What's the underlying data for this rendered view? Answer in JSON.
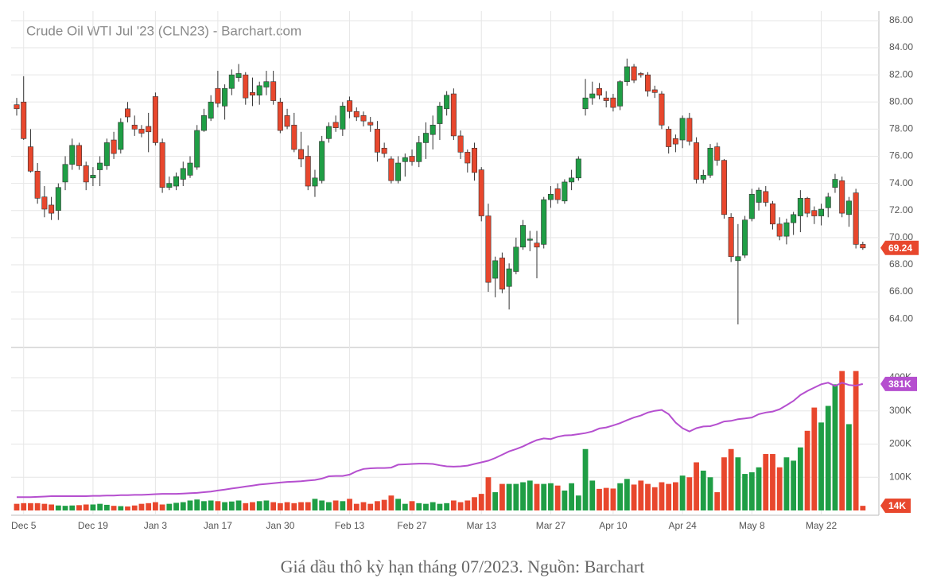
{
  "chart_data": {
    "type": "candlestick",
    "title": "Crude Oil WTI Jul '23 (CLN23) - Barchart.com",
    "categories": [
      null,
      "Dec 5",
      null,
      null,
      null,
      null,
      null,
      null,
      null,
      null,
      null,
      "Dec 19",
      null,
      null,
      null,
      null,
      null,
      null,
      null,
      null,
      "Jan 3",
      null,
      null,
      null,
      null,
      null,
      null,
      null,
      null,
      "Jan 17",
      null,
      null,
      null,
      null,
      null,
      null,
      null,
      null,
      "Jan 30",
      null,
      null,
      null,
      null,
      null,
      null,
      null,
      null,
      null,
      "Feb 13",
      null,
      null,
      null,
      null,
      null,
      null,
      null,
      null,
      "Feb 27",
      null,
      null,
      null,
      null,
      null,
      null,
      null,
      null,
      null,
      "Mar 13",
      null,
      null,
      null,
      null,
      null,
      null,
      null,
      null,
      null,
      "Mar 27",
      null,
      null,
      null,
      null,
      null,
      null,
      null,
      null,
      "Apr 10",
      null,
      null,
      null,
      null,
      null,
      null,
      null,
      null,
      null,
      "Apr 24",
      null,
      null,
      null,
      null,
      null,
      null,
      null,
      null,
      null,
      "May 8",
      null,
      null,
      null,
      null,
      null,
      null,
      null,
      null,
      null,
      "May 22",
      null,
      null,
      null,
      null,
      null,
      null
    ],
    "candles": [
      [
        79.8,
        80.3,
        79.0,
        79.5
      ],
      [
        80.0,
        81.9,
        77.2,
        77.3
      ],
      [
        76.7,
        78.0,
        74.8,
        74.9
      ],
      [
        74.9,
        75.5,
        72.5,
        72.9
      ],
      [
        73.0,
        73.8,
        71.5,
        72.1
      ],
      [
        72.4,
        73.0,
        71.3,
        71.8
      ],
      [
        72.0,
        74.0,
        71.3,
        73.7
      ],
      [
        74.1,
        76.0,
        73.5,
        75.4
      ],
      [
        75.4,
        77.3,
        75.0,
        76.8
      ],
      [
        76.8,
        77.0,
        75.0,
        75.3
      ],
      [
        75.3,
        75.6,
        73.5,
        74.1
      ],
      [
        74.4,
        75.2,
        73.8,
        74.6
      ],
      [
        75.0,
        76.0,
        73.8,
        75.5
      ],
      [
        75.3,
        77.3,
        75.0,
        77.0
      ],
      [
        77.2,
        77.8,
        75.8,
        76.2
      ],
      [
        76.5,
        78.8,
        76.2,
        78.5
      ],
      [
        79.5,
        80.0,
        78.5,
        78.9
      ],
      [
        78.3,
        79.0,
        77.5,
        78.0
      ],
      [
        78.0,
        78.3,
        77.4,
        77.7
      ],
      [
        78.2,
        79.2,
        76.3,
        77.8
      ],
      [
        80.4,
        80.7,
        76.8,
        77.0
      ],
      [
        77.0,
        77.3,
        73.3,
        73.7
      ],
      [
        73.7,
        74.5,
        73.5,
        74.0
      ],
      [
        73.8,
        74.8,
        73.5,
        74.5
      ],
      [
        74.3,
        75.6,
        73.8,
        75.1
      ],
      [
        74.6,
        76.0,
        74.4,
        75.5
      ],
      [
        75.2,
        78.3,
        75.0,
        77.9
      ],
      [
        77.9,
        79.5,
        77.8,
        79.0
      ],
      [
        78.8,
        80.5,
        78.6,
        80.0
      ],
      [
        81.0,
        82.3,
        79.6,
        79.9
      ],
      [
        79.7,
        81.3,
        78.7,
        81.0
      ],
      [
        81.0,
        82.4,
        80.5,
        82.0
      ],
      [
        81.8,
        82.8,
        81.5,
        82.1
      ],
      [
        82.0,
        82.2,
        79.8,
        80.3
      ],
      [
        80.7,
        81.8,
        79.7,
        80.5
      ],
      [
        80.5,
        81.5,
        79.8,
        81.2
      ],
      [
        81.1,
        82.3,
        80.5,
        81.5
      ],
      [
        81.5,
        82.3,
        79.8,
        80.1
      ],
      [
        80.0,
        80.3,
        77.7,
        77.9
      ],
      [
        79.0,
        79.5,
        78.0,
        78.2
      ],
      [
        78.3,
        79.2,
        76.3,
        76.5
      ],
      [
        76.5,
        77.8,
        75.2,
        75.8
      ],
      [
        76.0,
        76.8,
        73.5,
        73.8
      ],
      [
        73.8,
        75.0,
        73.0,
        74.4
      ],
      [
        74.2,
        77.5,
        74.0,
        77.1
      ],
      [
        77.3,
        78.5,
        77.0,
        78.2
      ],
      [
        78.5,
        79.0,
        77.8,
        78.1
      ],
      [
        78.0,
        80.0,
        77.5,
        79.7
      ],
      [
        80.1,
        80.4,
        78.8,
        79.3
      ],
      [
        79.3,
        79.6,
        78.6,
        78.9
      ],
      [
        79.0,
        79.3,
        78.2,
        78.6
      ],
      [
        78.5,
        78.9,
        77.8,
        78.3
      ],
      [
        78.0,
        78.6,
        75.6,
        76.3
      ],
      [
        76.6,
        77.0,
        75.9,
        76.2
      ],
      [
        75.8,
        76.0,
        74.0,
        74.2
      ],
      [
        74.2,
        76.0,
        74.0,
        75.5
      ],
      [
        75.6,
        76.2,
        74.5,
        75.9
      ],
      [
        76.0,
        76.5,
        75.3,
        75.6
      ],
      [
        75.6,
        77.5,
        75.2,
        77.0
      ],
      [
        77.0,
        78.5,
        75.8,
        77.7
      ],
      [
        77.6,
        79.0,
        76.5,
        78.3
      ],
      [
        78.4,
        80.0,
        77.2,
        79.7
      ],
      [
        79.5,
        80.8,
        79.0,
        80.5
      ],
      [
        80.6,
        81.0,
        77.2,
        77.5
      ],
      [
        77.5,
        77.9,
        75.8,
        76.3
      ],
      [
        76.3,
        76.5,
        74.8,
        75.5
      ],
      [
        76.6,
        77.0,
        74.2,
        74.8
      ],
      [
        75.0,
        75.2,
        71.2,
        71.6
      ],
      [
        71.6,
        72.5,
        66.0,
        66.7
      ],
      [
        67.0,
        68.6,
        65.6,
        68.3
      ],
      [
        68.5,
        68.9,
        65.9,
        66.2
      ],
      [
        66.4,
        68.1,
        64.7,
        67.7
      ],
      [
        67.5,
        70.0,
        67.3,
        69.3
      ],
      [
        69.3,
        71.3,
        69.1,
        70.9
      ],
      [
        69.8,
        70.5,
        69.0,
        69.9
      ],
      [
        69.6,
        70.5,
        67.0,
        69.3
      ],
      [
        69.5,
        73.0,
        69.2,
        72.8
      ],
      [
        72.8,
        73.8,
        72.2,
        73.2
      ],
      [
        73.6,
        74.0,
        72.5,
        72.8
      ],
      [
        72.7,
        74.3,
        72.5,
        74.1
      ],
      [
        74.1,
        75.0,
        73.5,
        74.4
      ],
      [
        74.4,
        76.0,
        74.2,
        75.8
      ],
      [
        79.5,
        81.7,
        79.0,
        80.3
      ],
      [
        80.3,
        81.5,
        79.8,
        80.6
      ],
      [
        81.0,
        81.4,
        80.2,
        80.5
      ],
      [
        80.3,
        80.8,
        79.6,
        80.1
      ],
      [
        80.3,
        80.6,
        79.3,
        79.6
      ],
      [
        79.7,
        81.6,
        79.4,
        81.5
      ],
      [
        81.5,
        83.2,
        81.2,
        82.6
      ],
      [
        82.6,
        82.8,
        81.4,
        81.6
      ],
      [
        82.1,
        82.2,
        81.8,
        82.0
      ],
      [
        82.0,
        82.2,
        80.4,
        80.8
      ],
      [
        80.9,
        81.2,
        80.3,
        80.7
      ],
      [
        80.6,
        80.8,
        78.0,
        78.3
      ],
      [
        78.0,
        78.2,
        76.2,
        76.7
      ],
      [
        77.3,
        77.6,
        76.3,
        76.9
      ],
      [
        77.2,
        79.0,
        76.6,
        78.8
      ],
      [
        78.8,
        79.2,
        76.8,
        77.1
      ],
      [
        77.0,
        77.4,
        74.0,
        74.3
      ],
      [
        74.3,
        75.0,
        74.0,
        74.6
      ],
      [
        74.6,
        76.9,
        74.4,
        76.6
      ],
      [
        76.7,
        77.0,
        75.3,
        75.7
      ],
      [
        75.7,
        75.8,
        71.4,
        71.7
      ],
      [
        71.5,
        71.8,
        68.2,
        68.6
      ],
      [
        68.3,
        71.0,
        63.6,
        68.6
      ],
      [
        68.7,
        71.6,
        68.5,
        71.3
      ],
      [
        71.4,
        73.6,
        71.2,
        73.2
      ],
      [
        72.6,
        73.7,
        72.0,
        73.5
      ],
      [
        73.4,
        73.8,
        72.3,
        72.6
      ],
      [
        72.5,
        72.7,
        70.6,
        71.0
      ],
      [
        71.0,
        71.5,
        69.8,
        70.1
      ],
      [
        70.1,
        71.4,
        69.5,
        71.1
      ],
      [
        71.1,
        71.9,
        70.2,
        71.7
      ],
      [
        71.6,
        73.5,
        70.4,
        72.9
      ],
      [
        72.9,
        73.0,
        71.5,
        71.8
      ],
      [
        72.0,
        72.3,
        71.0,
        71.6
      ],
      [
        71.6,
        72.5,
        70.9,
        72.1
      ],
      [
        72.2,
        73.3,
        71.5,
        73.0
      ],
      [
        73.7,
        74.7,
        73.3,
        74.3
      ],
      [
        74.2,
        74.5,
        71.5,
        71.8
      ],
      [
        71.7,
        73.0,
        70.8,
        72.7
      ],
      [
        73.3,
        73.6,
        69.2,
        69.5
      ],
      [
        69.5,
        69.7,
        69.1,
        69.24
      ]
    ],
    "up_color": "#1f9e45",
    "down_color": "#e8472d",
    "ylim": [
      61.9,
      86.7
    ],
    "yticks": [
      {
        "value": 64,
        "label": "64.00"
      },
      {
        "value": 66,
        "label": "66.00"
      },
      {
        "value": 68,
        "label": "68.00"
      },
      {
        "value": 70,
        "label": "70.00"
      },
      {
        "value": 72,
        "label": "72.00"
      },
      {
        "value": 74,
        "label": "74.00"
      },
      {
        "value": 76,
        "label": "76.00"
      },
      {
        "value": 78,
        "label": "78.00"
      },
      {
        "value": 80,
        "label": "80.00"
      },
      {
        "value": 82,
        "label": "82.00"
      },
      {
        "value": 84,
        "label": "84.00"
      },
      {
        "value": 86,
        "label": "86.00"
      }
    ],
    "price_label": 69.24,
    "grid": true,
    "volume": {
      "values": [
        20000,
        22000,
        22000,
        22000,
        20000,
        18000,
        15000,
        14000,
        15000,
        16000,
        18000,
        18000,
        20000,
        17000,
        14000,
        13000,
        12000,
        15000,
        20000,
        22000,
        25000,
        18000,
        20000,
        23000,
        25000,
        30000,
        33000,
        28000,
        30000,
        28000,
        25000,
        27000,
        30000,
        22000,
        25000,
        28000,
        30000,
        25000,
        22000,
        25000,
        22000,
        25000,
        25000,
        35000,
        30000,
        25000,
        30000,
        28000,
        35000,
        20000,
        25000,
        20000,
        28000,
        32000,
        45000,
        35000,
        20000,
        28000,
        22000,
        20000,
        25000,
        20000,
        22000,
        30000,
        25000,
        30000,
        40000,
        50000,
        100000,
        55000,
        80000,
        80000,
        80000,
        85000,
        90000,
        80000,
        80000,
        82000,
        75000,
        60000,
        82000,
        45000,
        185000,
        90000,
        65000,
        68000,
        66000,
        82000,
        95000,
        78000,
        90000,
        80000,
        70000,
        85000,
        80000,
        85000,
        105000,
        100000,
        145000,
        120000,
        100000,
        55000,
        160000,
        185000,
        160000,
        110000,
        115000,
        130000,
        170000,
        170000,
        130000,
        160000,
        150000,
        190000,
        240000,
        310000,
        265000,
        315000,
        380000,
        420000,
        260000,
        420000,
        14000
      ],
      "value_label": "14K",
      "ylim": [
        0,
        491000
      ],
      "yticks": [
        {
          "value": 100000,
          "label": "100K"
        },
        {
          "value": 200000,
          "label": "200K"
        },
        {
          "value": 300000,
          "label": "300K"
        },
        {
          "value": 400000,
          "label": "400K"
        }
      ]
    },
    "line": {
      "color": "#b54fcf",
      "values": [
        40000,
        40000,
        40000,
        41000,
        42000,
        43000,
        43000,
        43000,
        43000,
        43000,
        43000,
        44000,
        44000,
        45000,
        45000,
        46000,
        46000,
        47000,
        47000,
        48000,
        49000,
        50000,
        50000,
        50000,
        51000,
        52000,
        53000,
        55000,
        57000,
        60000,
        63000,
        66000,
        69000,
        72000,
        75000,
        78000,
        80000,
        82000,
        84000,
        86000,
        87000,
        88000,
        90000,
        92000,
        96000,
        103000,
        104000,
        104000,
        108000,
        118000,
        125000,
        127000,
        128000,
        128000,
        129000,
        138000,
        139000,
        140000,
        141000,
        141000,
        140000,
        136000,
        133000,
        132000,
        133000,
        135000,
        140000,
        145000,
        150000,
        158000,
        168000,
        178000,
        185000,
        193000,
        203000,
        212000,
        217000,
        215000,
        222000,
        226000,
        227000,
        230000,
        233000,
        238000,
        247000,
        250000,
        256000,
        263000,
        272000,
        280000,
        286000,
        295000,
        300000,
        303000,
        290000,
        265000,
        248000,
        238000,
        248000,
        253000,
        254000,
        260000,
        268000,
        270000,
        275000,
        277000,
        280000,
        290000,
        295000,
        298000,
        305000,
        317000,
        330000,
        348000,
        360000,
        370000,
        380000,
        385000,
        375000,
        385000,
        378000,
        376000,
        381000
      ],
      "value_label": "381K"
    }
  },
  "caption": "Giá dầu thô kỳ hạn tháng 07/2023. Nguồn: Barchart"
}
